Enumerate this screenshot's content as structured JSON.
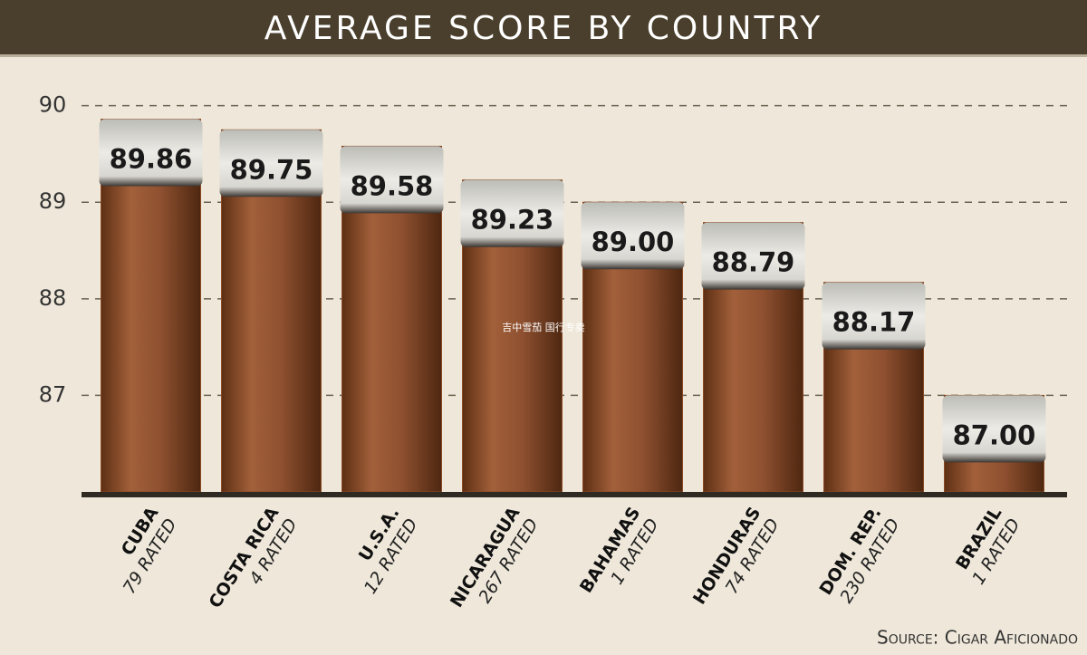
{
  "chart_data": {
    "type": "bar",
    "title": "AVERAGE SCORE BY COUNTRY",
    "categories": [
      "CUBA",
      "COSTA RICA",
      "U.S.A.",
      "NICARAGUA",
      "BAHAMAS",
      "HONDURAS",
      "DOM. REP.",
      "BRAZIL"
    ],
    "category_notes": [
      "79 RATED",
      "4 RATED",
      "12 RATED",
      "267 RATED",
      "1 RATED",
      "74 RATED",
      "230 RATED",
      "1 RATED"
    ],
    "values": [
      89.86,
      89.75,
      89.58,
      89.23,
      89.0,
      88.79,
      88.17,
      87.0
    ],
    "value_labels": [
      "89.86",
      "89.75",
      "89.58",
      "89.23",
      "89.00",
      "88.79",
      "88.17",
      "87.00"
    ],
    "color": "#8a4a25",
    "ylim": [
      86,
      90.4
    ],
    "yticks": [
      87,
      88,
      89,
      90
    ],
    "grid": true,
    "source": "Source: Cigar Aficionado",
    "watermark": "吉中雪茄 国行专卖"
  }
}
